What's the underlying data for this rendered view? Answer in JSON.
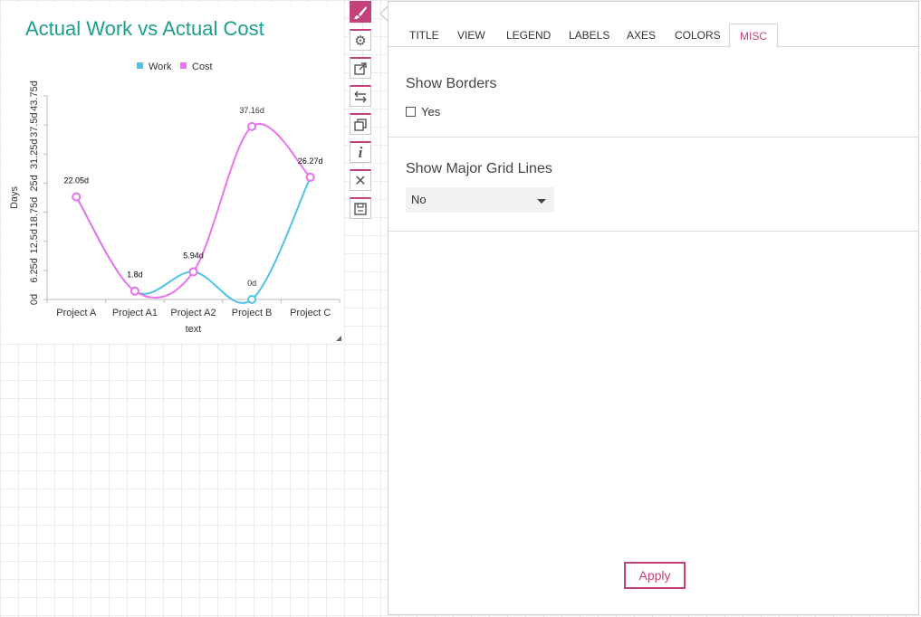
{
  "chart": {
    "title": "Actual Work vs Actual Cost"
  },
  "chart_data": {
    "type": "line",
    "title": "Actual Work vs Actual Cost",
    "xlabel": "text",
    "ylabel": "Days",
    "categories": [
      "Project A",
      "Project A1",
      "Project A2",
      "Project B",
      "Project C"
    ],
    "y_ticks": [
      "0d",
      "6.25d",
      "12.5d",
      "18.75d",
      "25d",
      "31.25d",
      "37.5d",
      "43.75d"
    ],
    "ylim": [
      0,
      43.75
    ],
    "legend_position": "top-center",
    "series": [
      {
        "name": "Work",
        "color": "#4fc3e6",
        "values": [
          22.05,
          1.8,
          5.94,
          0,
          26.27
        ],
        "labels": [
          "22.05d",
          "1.8d",
          "5.94d",
          "0d",
          "26.27d"
        ]
      },
      {
        "name": "Cost",
        "color": "#ea74ea",
        "values": [
          22.05,
          1.8,
          5.94,
          37.16,
          26.27
        ],
        "labels": [
          "22.05d",
          "1.8d",
          "5.94d",
          "37.16d",
          "26.27d"
        ]
      }
    ]
  },
  "toolbar": {
    "items": [
      {
        "icon": "paintbrush-icon",
        "active": true
      },
      {
        "icon": "gear-icon",
        "active": false
      },
      {
        "icon": "external-link-icon",
        "active": false
      },
      {
        "icon": "swap-arrows-icon",
        "active": false
      },
      {
        "icon": "copy-icon",
        "active": false
      },
      {
        "icon": "info-icon",
        "active": false
      },
      {
        "icon": "close-icon",
        "active": false
      },
      {
        "icon": "save-icon",
        "active": false
      }
    ]
  },
  "panel": {
    "tabs": [
      "TITLE",
      "VIEW",
      "LEGEND",
      "LABELS",
      "AXES",
      "COLORS",
      "MISC"
    ],
    "active_tab": "MISC",
    "show_borders": {
      "title": "Show Borders",
      "checkbox_label": "Yes",
      "checked": false
    },
    "grid_lines": {
      "title": "Show Major Grid Lines",
      "selected": "No"
    },
    "apply_label": "Apply"
  },
  "colors": {
    "accent": "#c5417b",
    "title": "#1a9f8a"
  }
}
